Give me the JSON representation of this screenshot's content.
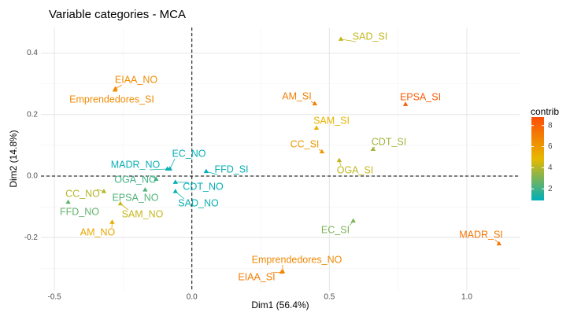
{
  "chart_data": {
    "type": "scatter",
    "title": "Variable categories - MCA",
    "xlabel": "Dim1 (56.4%)",
    "ylabel": "Dim2 (14.8%)",
    "labels": [
      "SAD_SI",
      "EIAA_NO",
      "Emprendedores_SI",
      "AM_SI",
      "EPSA_SI",
      "SAM_SI",
      "CC_SI",
      "CDT_SI",
      "OGA_SI",
      "EC_NO",
      "MADR_NO",
      "FFD_SI",
      "OGA_NO",
      "CDT_NO",
      "SAD_NO",
      "EPSA_NO",
      "CC_NO",
      "FFD_NO",
      "SAM_NO",
      "AM_NO",
      "EC_SI",
      "MADR_SI",
      "EIAA_SI",
      "Emprendedores_NO"
    ],
    "x": [
      0.542,
      -0.278,
      -0.28,
      0.447,
      0.777,
      0.453,
      0.473,
      0.659,
      0.536,
      -0.08,
      -0.089,
      0.052,
      -0.13,
      -0.06,
      -0.06,
      -0.17,
      -0.32,
      -0.45,
      -0.26,
      -0.29,
      0.587,
      1.117,
      0.327,
      0.33
    ],
    "values": [
      0.445,
      0.284,
      0.28,
      0.235,
      0.233,
      0.156,
      0.079,
      0.087,
      0.051,
      0.023,
      0.023,
      0.015,
      -0.01,
      -0.02,
      -0.05,
      -0.045,
      -0.05,
      -0.085,
      -0.09,
      -0.15,
      -0.146,
      -0.22,
      -0.312,
      -0.31
    ],
    "contrib": [
      4.2,
      6.5,
      6.5,
      7.0,
      8.3,
      5.0,
      6.0,
      3.6,
      4.2,
      1.0,
      1.1,
      1.0,
      2.0,
      1.0,
      1.1,
      2.3,
      4.0,
      2.6,
      4.3,
      5.5,
      3.0,
      7.3,
      7.0,
      6.6
    ],
    "xlim": [
      -0.549,
      1.192
    ],
    "ylim": [
      -0.373,
      0.483
    ],
    "xticks": [
      -0.5,
      {
        "value": 0,
        "label": "0.0"
      },
      0.5,
      {
        "value": 1,
        "label": "1.0"
      }
    ],
    "yticks": [
      -0.2,
      {
        "value": 0,
        "label": "0.0"
      },
      0.2,
      0.4
    ],
    "ref_lines": {
      "x": 0,
      "y": 0
    },
    "grid": true,
    "color_scale": {
      "title": "contrib",
      "lim": [
        0.9,
        8.8
      ],
      "ticks": [
        2,
        4,
        6,
        8
      ],
      "colors": [
        "#00AFBB",
        "#E7B800",
        "#FC4E07"
      ]
    }
  }
}
